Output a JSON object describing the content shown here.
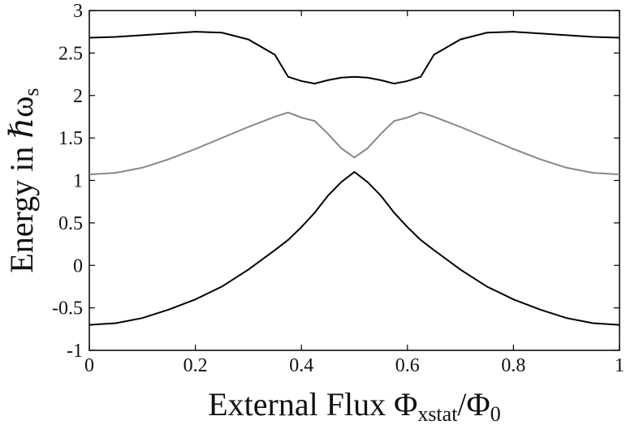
{
  "chart_data": {
    "type": "line",
    "xlabel": [
      "External Flux Φ",
      "xstat",
      "/Φ",
      "0"
    ],
    "ylabel": [
      "Energy in ℏω",
      "s"
    ],
    "x": [
      0,
      0.05,
      0.1,
      0.15,
      0.2,
      0.25,
      0.3,
      0.35,
      0.375,
      0.4,
      0.425,
      0.45,
      0.475,
      0.5,
      0.525,
      0.55,
      0.575,
      0.6,
      0.625,
      0.65,
      0.7,
      0.75,
      0.8,
      0.85,
      0.9,
      0.95,
      1
    ],
    "series": [
      {
        "color": "#000000",
        "values": [
          -0.7,
          -0.68,
          -0.62,
          -0.52,
          -0.4,
          -0.25,
          -0.05,
          0.18,
          0.3,
          0.45,
          0.62,
          0.82,
          0.98,
          1.1,
          0.98,
          0.82,
          0.62,
          0.45,
          0.3,
          0.18,
          -0.05,
          -0.25,
          -0.4,
          -0.52,
          -0.62,
          -0.68,
          -0.7
        ]
      },
      {
        "color": "#888888",
        "values": [
          1.07,
          1.09,
          1.15,
          1.25,
          1.37,
          1.5,
          1.63,
          1.75,
          1.8,
          1.74,
          1.7,
          1.55,
          1.38,
          1.27,
          1.38,
          1.55,
          1.7,
          1.74,
          1.8,
          1.75,
          1.63,
          1.5,
          1.37,
          1.25,
          1.15,
          1.09,
          1.07
        ]
      },
      {
        "color": "#000000",
        "values": [
          2.68,
          2.69,
          2.71,
          2.73,
          2.75,
          2.74,
          2.66,
          2.48,
          2.22,
          2.17,
          2.14,
          2.18,
          2.21,
          2.22,
          2.21,
          2.18,
          2.14,
          2.17,
          2.22,
          2.48,
          2.66,
          2.74,
          2.75,
          2.73,
          2.71,
          2.69,
          2.68
        ]
      }
    ],
    "xlim": [
      0,
      1
    ],
    "xticks": [
      0,
      0.2,
      0.4,
      0.6,
      0.8,
      1
    ],
    "ylim": [
      -1,
      3
    ],
    "yticks": [
      -1,
      -0.5,
      0,
      0.5,
      1,
      1.5,
      2,
      2.5,
      3
    ]
  }
}
